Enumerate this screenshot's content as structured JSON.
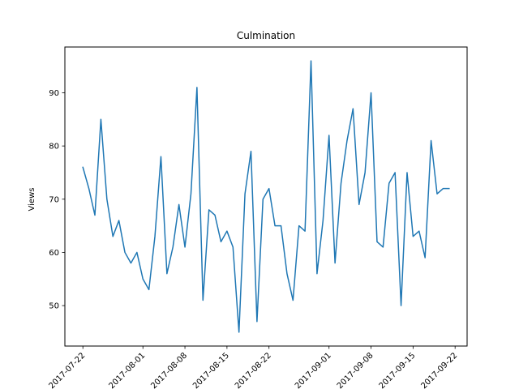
{
  "chart_data": {
    "type": "line",
    "title": "Culmination",
    "xlabel": "",
    "ylabel": "Views",
    "x_type": "date",
    "xlim": [
      "2017-07-19",
      "2017-09-24"
    ],
    "ylim": [
      42.4,
      98.6
    ],
    "x_ticks": [
      "2017-07-22",
      "2017-08-01",
      "2017-08-08",
      "2017-08-15",
      "2017-08-22",
      "2017-09-01",
      "2017-09-08",
      "2017-09-15",
      "2017-09-22"
    ],
    "y_ticks": [
      50,
      60,
      70,
      80,
      90
    ],
    "grid": false,
    "series": [
      {
        "color": "#1f77b4",
        "x": [
          "2017-07-22",
          "2017-07-23",
          "2017-07-24",
          "2017-07-25",
          "2017-07-26",
          "2017-07-27",
          "2017-07-28",
          "2017-07-29",
          "2017-07-30",
          "2017-07-31",
          "2017-08-01",
          "2017-08-02",
          "2017-08-03",
          "2017-08-04",
          "2017-08-05",
          "2017-08-06",
          "2017-08-07",
          "2017-08-08",
          "2017-08-09",
          "2017-08-10",
          "2017-08-11",
          "2017-08-12",
          "2017-08-13",
          "2017-08-14",
          "2017-08-15",
          "2017-08-16",
          "2017-08-17",
          "2017-08-18",
          "2017-08-19",
          "2017-08-20",
          "2017-08-21",
          "2017-08-22",
          "2017-08-23",
          "2017-08-24",
          "2017-08-25",
          "2017-08-26",
          "2017-08-27",
          "2017-08-28",
          "2017-08-29",
          "2017-08-30",
          "2017-08-31",
          "2017-09-01",
          "2017-09-02",
          "2017-09-03",
          "2017-09-04",
          "2017-09-05",
          "2017-09-06",
          "2017-09-07",
          "2017-09-08",
          "2017-09-09",
          "2017-09-10",
          "2017-09-11",
          "2017-09-12",
          "2017-09-13",
          "2017-09-14",
          "2017-09-15",
          "2017-09-16",
          "2017-09-17",
          "2017-09-18",
          "2017-09-19",
          "2017-09-20",
          "2017-09-21"
        ],
        "values": [
          76,
          72,
          67,
          85,
          70,
          63,
          66,
          60,
          58,
          60,
          55,
          53,
          63,
          78,
          56,
          61,
          69,
          61,
          71,
          91,
          51,
          68,
          67,
          62,
          64,
          61,
          45,
          71,
          79,
          47,
          70,
          72,
          65,
          65,
          56,
          51,
          65,
          64,
          96,
          56,
          66,
          82,
          58,
          73,
          81,
          87,
          69,
          75,
          90,
          62,
          61,
          73,
          75,
          50,
          75,
          63,
          64,
          59,
          81,
          71,
          72,
          72
        ]
      }
    ]
  }
}
